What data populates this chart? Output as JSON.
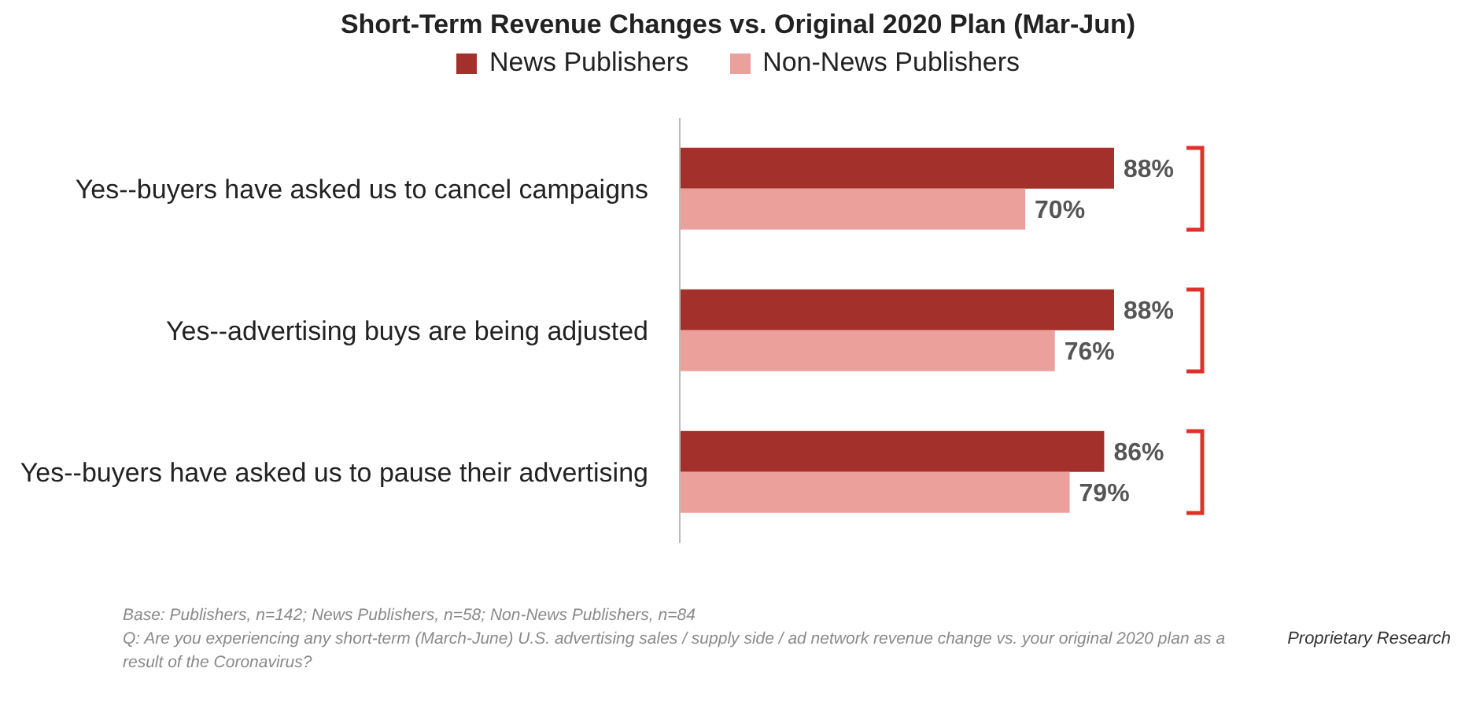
{
  "chart_data": {
    "type": "bar",
    "orientation": "horizontal",
    "title": "Short-Term Revenue Changes vs. Original 2020 Plan (Mar-Jun)",
    "categories": [
      "Yes--buyers have asked us to cancel campaigns",
      "Yes--advertising buys are being adjusted",
      "Yes--buyers have asked us to pause their advertising"
    ],
    "series": [
      {
        "name": "News Publishers",
        "color": "#a3302a",
        "values": [
          88,
          88,
          86
        ],
        "value_labels": [
          "88%",
          "88%",
          "86%"
        ]
      },
      {
        "name": "Non-News Publishers",
        "color": "#eba09c",
        "values": [
          70,
          76,
          79
        ],
        "value_labels": [
          "70%",
          "76%",
          "79%"
        ]
      }
    ],
    "legend": "top",
    "grid": false,
    "tick_labels": "y",
    "annotations": [
      "Base: Publishers, n=142; News Publishers, n=58; Non-News Publishers, n=84",
      "Q: Are you experiencing any short-term (March-June) U.S. advertising sales / supply side / ad network revenue change vs. your original 2020 plan as a result of the Coronavirus?",
      "Proprietary Research"
    ]
  }
}
